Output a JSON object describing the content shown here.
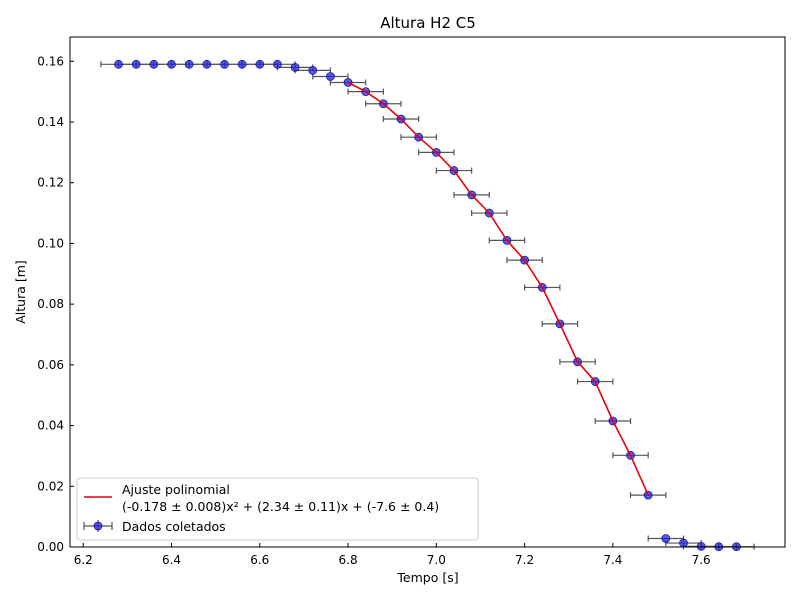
{
  "chart_data": {
    "type": "scatter",
    "title": "Altura H2 C5",
    "xlabel": "Tempo [s]",
    "ylabel": "Altura [m]",
    "xlim": [
      6.17,
      7.79
    ],
    "ylim": [
      0.0,
      0.168
    ],
    "xticks": [
      "6.2",
      "6.4",
      "6.6",
      "6.8",
      "7.0",
      "7.2",
      "7.4",
      "7.6"
    ],
    "xtick_values": [
      6.2,
      6.4,
      6.6,
      6.8,
      7.0,
      7.2,
      7.4,
      7.6
    ],
    "yticks": [
      "0.00",
      "0.02",
      "0.04",
      "0.06",
      "0.08",
      "0.10",
      "0.12",
      "0.14",
      "0.16"
    ],
    "ytick_values": [
      0.0,
      0.02,
      0.04,
      0.06,
      0.08,
      0.1,
      0.12,
      0.14,
      0.16
    ],
    "grid": false,
    "legend_position": "lower-left",
    "series": [
      {
        "name": "Ajuste polinomial\n(-0.178 ± 0.008)x² + (2.34 ± 0.11)x + (-7.6 ± 0.4)",
        "kind": "line",
        "color": "#e8000b",
        "x": [
          6.8,
          6.84,
          6.88,
          6.92,
          6.96,
          7.0,
          7.04,
          7.08,
          7.12,
          7.16,
          7.2,
          7.24,
          7.28,
          7.32,
          7.36,
          7.4,
          7.44,
          7.48
        ],
        "y": [
          0.153,
          0.15,
          0.146,
          0.141,
          0.135,
          0.13,
          0.124,
          0.116,
          0.11,
          0.101,
          0.0945,
          0.0855,
          0.0735,
          0.061,
          0.0545,
          0.0415,
          0.0302,
          0.0171
        ]
      },
      {
        "name": "Dados coletados",
        "kind": "errorbar",
        "color": "#2222dd",
        "errcolor": "#555555",
        "xerr": 0.04,
        "x": [
          6.28,
          6.32,
          6.36,
          6.4,
          6.44,
          6.48,
          6.52,
          6.56,
          6.6,
          6.64,
          6.68,
          6.72,
          6.76,
          6.8,
          6.84,
          6.88,
          6.92,
          6.96,
          7.0,
          7.04,
          7.08,
          7.12,
          7.16,
          7.2,
          7.24,
          7.28,
          7.32,
          7.36,
          7.4,
          7.44,
          7.48,
          7.52,
          7.56,
          7.6,
          7.64,
          7.68
        ],
        "y": [
          0.159,
          0.159,
          0.159,
          0.159,
          0.159,
          0.159,
          0.159,
          0.159,
          0.159,
          0.159,
          0.158,
          0.157,
          0.155,
          0.153,
          0.15,
          0.146,
          0.141,
          0.135,
          0.13,
          0.124,
          0.116,
          0.11,
          0.101,
          0.0945,
          0.0855,
          0.0735,
          0.061,
          0.0545,
          0.0415,
          0.0302,
          0.0171,
          0.0028,
          0.0013,
          0.0002,
          0.0001,
          0.0001
        ]
      }
    ]
  }
}
